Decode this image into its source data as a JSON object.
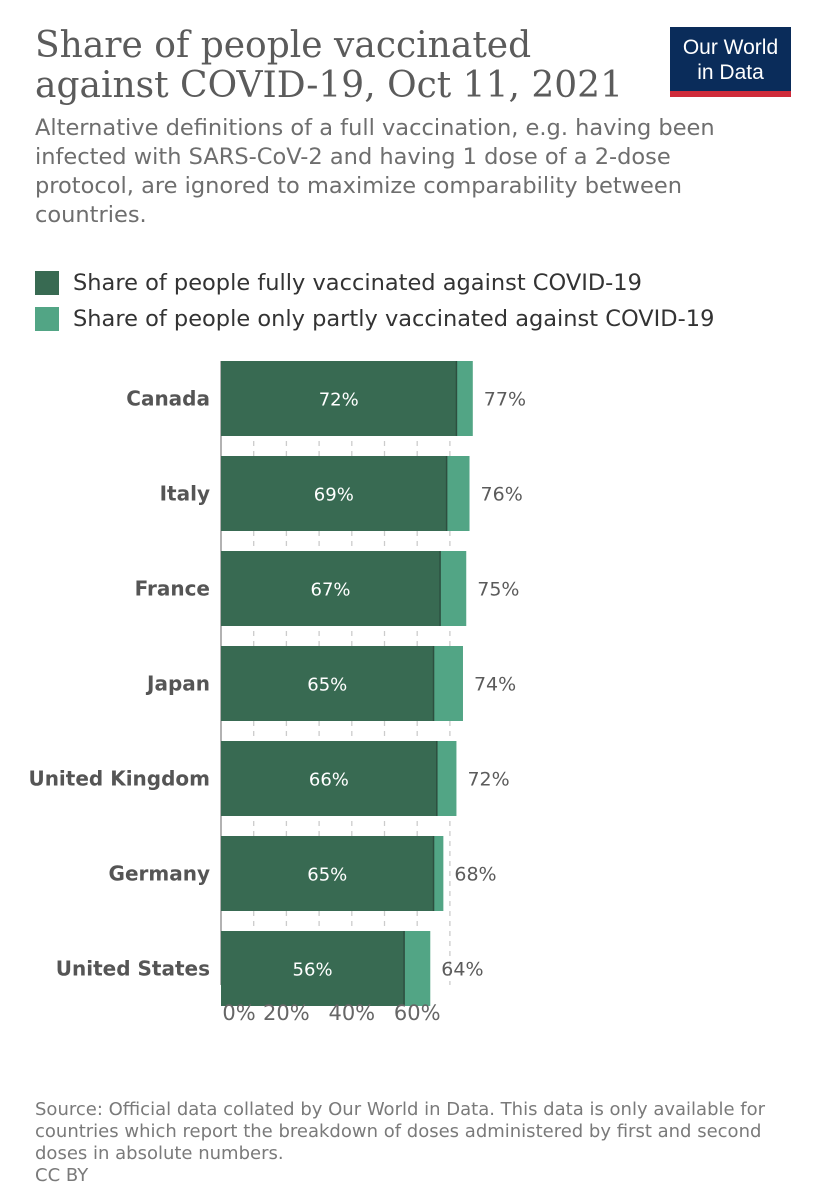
{
  "title": "Share of people vaccinated against COVID-19, Oct 11, 2021",
  "subtitle": "Alternative definitions of a full vaccination, e.g. having been infected with SARS-CoV-2 and having 1 dose of a 2-dose protocol, are ignored to maximize comparability between countries.",
  "logo": {
    "line1": "Our World",
    "line2": "in Data"
  },
  "legend": [
    {
      "label": "Share of people fully vaccinated against COVID-19",
      "color": "#386a52"
    },
    {
      "label": "Share of people only partly vaccinated against COVID-19",
      "color": "#52a585"
    }
  ],
  "chart_data": {
    "type": "bar",
    "orientation": "horizontal",
    "stacked": true,
    "categories": [
      "Canada",
      "Italy",
      "France",
      "Japan",
      "United Kingdom",
      "Germany",
      "United States"
    ],
    "series": [
      {
        "name": "Share of people fully vaccinated against COVID-19",
        "values": [
          72,
          69,
          67,
          65,
          66,
          65,
          56
        ],
        "labels": [
          "72%",
          "69%",
          "67%",
          "65%",
          "66%",
          "65%",
          "56%"
        ]
      },
      {
        "name": "Share of people only partly vaccinated against COVID-19",
        "values": [
          5,
          7,
          8,
          9,
          6,
          3,
          8
        ]
      }
    ],
    "totals": [
      77,
      76,
      75,
      74,
      72,
      68,
      64
    ],
    "total_labels": [
      "77%",
      "76%",
      "75%",
      "74%",
      "72%",
      "68%",
      "64%"
    ],
    "xticks": [
      0,
      20,
      40,
      60
    ],
    "xtick_labels": [
      "0%",
      "20%",
      "40%",
      "60%"
    ],
    "xlim": [
      0,
      77
    ],
    "grid": true
  },
  "source": "Source: Official data collated by Our World in Data. This data is only available for countries which report the breakdown of doses administered by first and second doses in absolute numbers.",
  "license": "CC BY"
}
